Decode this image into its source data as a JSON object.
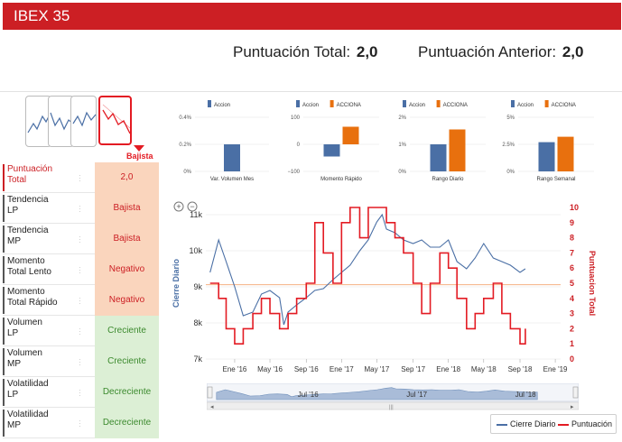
{
  "header": {
    "title": "IBEX 35"
  },
  "scores": {
    "total_label": "Puntuación Total:",
    "total_value": "2,0",
    "previous_label": "Puntuación Anterior:",
    "previous_value": "2,0"
  },
  "trend_selector": {
    "active_label": "Bajista"
  },
  "indicators": [
    {
      "name_1": "Puntuación",
      "name_2": "Total",
      "value": "2,0",
      "style": "neutral"
    },
    {
      "name_1": "Tendencia",
      "name_2": "LP",
      "value": "Bajista",
      "style": "orange"
    },
    {
      "name_1": "Tendencia",
      "name_2": "MP",
      "value": "Bajista",
      "style": "orange"
    },
    {
      "name_1": "Momento",
      "name_2": "Total Lento",
      "value": "Negativo",
      "style": "orange"
    },
    {
      "name_1": "Momento",
      "name_2": "Total Rápido",
      "value": "Negativo",
      "style": "orange"
    },
    {
      "name_1": "Volumen",
      "name_2": "LP",
      "value": "Creciente",
      "style": "green"
    },
    {
      "name_1": "Volumen",
      "name_2": "MP",
      "value": "Creciente",
      "style": "green"
    },
    {
      "name_1": "Volatilidad",
      "name_2": "LP",
      "value": "Decreciente",
      "style": "green"
    },
    {
      "name_1": "Volatilidad",
      "name_2": "MP",
      "value": "Decreciente",
      "style": "green"
    }
  ],
  "colors": {
    "accion": "#4a6fa5",
    "acciona": "#e8700e",
    "brand_red": "#cc1f24"
  },
  "chart_data": [
    {
      "type": "bar",
      "legend": [
        "Accion"
      ],
      "categories": [
        "Var. Volumen Mes"
      ],
      "yticks": [
        "0.4%",
        "0.2%",
        "0%"
      ],
      "ylim": [
        0,
        0.4
      ],
      "series": [
        {
          "name": "Accion",
          "values": [
            0.2
          ]
        }
      ]
    },
    {
      "type": "bar",
      "legend": [
        "Accion",
        "ACCIONA"
      ],
      "categories": [
        "Momento Rápido"
      ],
      "yticks": [
        "100",
        "0",
        "−100"
      ],
      "ylim": [
        -100,
        100
      ],
      "series": [
        {
          "name": "Accion",
          "values": [
            -45
          ]
        },
        {
          "name": "ACCIONA",
          "values": [
            65
          ]
        }
      ]
    },
    {
      "type": "bar",
      "legend": [
        "Accion",
        "ACCIONA"
      ],
      "categories": [
        "Rango Diario"
      ],
      "yticks": [
        "2%",
        "1%",
        "0%"
      ],
      "ylim": [
        0,
        2
      ],
      "series": [
        {
          "name": "Accion",
          "values": [
            1.0
          ]
        },
        {
          "name": "ACCIONA",
          "values": [
            1.55
          ]
        }
      ]
    },
    {
      "type": "bar",
      "legend": [
        "Accion",
        "ACCIONA"
      ],
      "categories": [
        "Rango Semanal"
      ],
      "yticks": [
        "5%",
        "2.5%",
        "0%"
      ],
      "ylim": [
        0,
        5
      ],
      "series": [
        {
          "name": "Accion",
          "values": [
            2.7
          ]
        },
        {
          "name": "ACCIONA",
          "values": [
            3.2
          ]
        }
      ]
    },
    {
      "type": "line",
      "left_axis_label": "Cierre Diario",
      "right_axis_label": "Puntuacion Total",
      "left_ticks": [
        "11k",
        "10k",
        "9k",
        "8k",
        "7k"
      ],
      "left_ylim": [
        7000,
        11200
      ],
      "right_ticks": [
        "10",
        "9",
        "8",
        "7",
        "6",
        "5",
        "4",
        "3",
        "2",
        "1",
        "0"
      ],
      "right_ylim": [
        0,
        10
      ],
      "x_ticks": [
        "Ene '16",
        "May '16",
        "Sep '16",
        "Ene '17",
        "May '17",
        "Sep '17",
        "Ene '18",
        "May '18",
        "Sep '18",
        "Ene '19"
      ],
      "navigator_ticks": [
        "Jul '16",
        "Jul '17",
        "Jul '18"
      ],
      "reference_level": 4.9,
      "series": [
        {
          "name": "Cierre Diario",
          "x": [
            2015.77,
            2015.85,
            2015.92,
            2016.0,
            2016.08,
            2016.17,
            2016.25,
            2016.33,
            2016.42,
            2016.46,
            2016.5,
            2016.58,
            2016.67,
            2016.75,
            2016.83,
            2016.92,
            2017.0,
            2017.08,
            2017.17,
            2017.25,
            2017.33,
            2017.38,
            2017.42,
            2017.5,
            2017.58,
            2017.67,
            2017.75,
            2017.83,
            2017.92,
            2018.0,
            2018.08,
            2018.17,
            2018.25,
            2018.33,
            2018.42,
            2018.5,
            2018.58,
            2018.67,
            2018.72
          ],
          "values": [
            9400,
            10300,
            9700,
            9000,
            8200,
            8300,
            8800,
            8900,
            8700,
            7950,
            8300,
            8500,
            8700,
            8900,
            8950,
            9200,
            9400,
            9600,
            10000,
            10300,
            10800,
            11000,
            10600,
            10500,
            10300,
            10200,
            10300,
            10100,
            10100,
            10300,
            9700,
            9500,
            9800,
            10200,
            9800,
            9700,
            9600,
            9400,
            9500
          ]
        },
        {
          "name": "Puntuación",
          "x": [
            2015.77,
            2015.85,
            2015.92,
            2016.0,
            2016.08,
            2016.17,
            2016.25,
            2016.33,
            2016.42,
            2016.5,
            2016.58,
            2016.67,
            2016.75,
            2016.83,
            2016.92,
            2017.0,
            2017.08,
            2017.17,
            2017.25,
            2017.33,
            2017.42,
            2017.5,
            2017.58,
            2017.67,
            2017.75,
            2017.83,
            2017.92,
            2018.0,
            2018.08,
            2018.17,
            2018.25,
            2018.33,
            2018.42,
            2018.5,
            2018.58,
            2018.67,
            2018.72
          ],
          "values": [
            5,
            4,
            2,
            1,
            2,
            3,
            4,
            3,
            2,
            3,
            4,
            5,
            9,
            7,
            5,
            9,
            10,
            8,
            10,
            10,
            9,
            8,
            7,
            5,
            3,
            5,
            7,
            6,
            4,
            2,
            3,
            4,
            5,
            3,
            2,
            1,
            2
          ]
        }
      ]
    }
  ],
  "legend": {
    "series_1": "Cierre Diario",
    "series_2": "Puntuación"
  }
}
